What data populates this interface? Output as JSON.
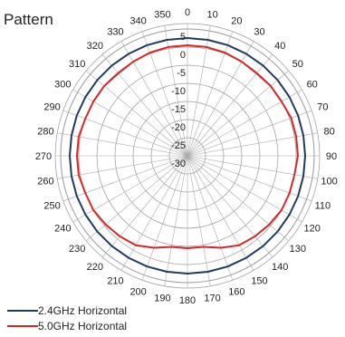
{
  "title": "Pattern",
  "chart_data": {
    "type": "polar-line",
    "angle_ticks": [
      "0",
      "10",
      "20",
      "30",
      "40",
      "50",
      "60",
      "70",
      "80",
      "90",
      "100",
      "110",
      "120",
      "130",
      "140",
      "150",
      "160",
      "170",
      "180",
      "190",
      "200",
      "210",
      "220",
      "230",
      "240",
      "250",
      "260",
      "270",
      "280",
      "290",
      "300",
      "310",
      "320",
      "330",
      "340",
      "350"
    ],
    "radial_ticks": [
      "5",
      "0",
      "-5",
      "-10",
      "-15",
      "-20",
      "-25",
      "-30"
    ],
    "rlim": [
      -30,
      5
    ],
    "grid": true,
    "legend_position": "bottom-left",
    "series": [
      {
        "name": "2.4GHz Horizontal",
        "color": "#1f3b5c",
        "angles": [
          0,
          10,
          20,
          30,
          40,
          50,
          60,
          70,
          80,
          90,
          100,
          110,
          120,
          130,
          140,
          150,
          160,
          170,
          180,
          190,
          200,
          210,
          220,
          230,
          240,
          250,
          260,
          270,
          280,
          290,
          300,
          310,
          320,
          330,
          340,
          350
        ],
        "values": [
          2.5,
          2.5,
          2.5,
          2.5,
          2.5,
          2.5,
          2.5,
          2.5,
          2.5,
          2.5,
          2.5,
          2.5,
          2.5,
          2.5,
          2.5,
          2.5,
          2.5,
          2.5,
          2.5,
          2.5,
          2.5,
          2.5,
          2.5,
          2.5,
          2.5,
          2.5,
          2.5,
          2.5,
          2.5,
          2.5,
          2.5,
          2.5,
          2.5,
          2.5,
          2.5,
          2.5
        ]
      },
      {
        "name": "5.0GHz Horizontal",
        "color": "#d62728",
        "angles": [
          0,
          10,
          20,
          30,
          40,
          50,
          60,
          70,
          80,
          90,
          100,
          110,
          120,
          130,
          140,
          150,
          160,
          170,
          180,
          190,
          200,
          210,
          220,
          230,
          240,
          250,
          260,
          270,
          280,
          290,
          300,
          310,
          320,
          330,
          340,
          350
        ],
        "values": [
          0.5,
          0.5,
          0.3,
          0,
          -0.3,
          0,
          0,
          0.5,
          0.5,
          0.5,
          0,
          0,
          0,
          -0.5,
          -1,
          -1.5,
          -3,
          -4.5,
          -4.5,
          -4.5,
          -3,
          -1.5,
          -1,
          -0.5,
          0,
          0,
          0.5,
          0.5,
          0.5,
          0,
          0,
          0,
          -0.3,
          0,
          0.3,
          0.5
        ]
      }
    ]
  }
}
